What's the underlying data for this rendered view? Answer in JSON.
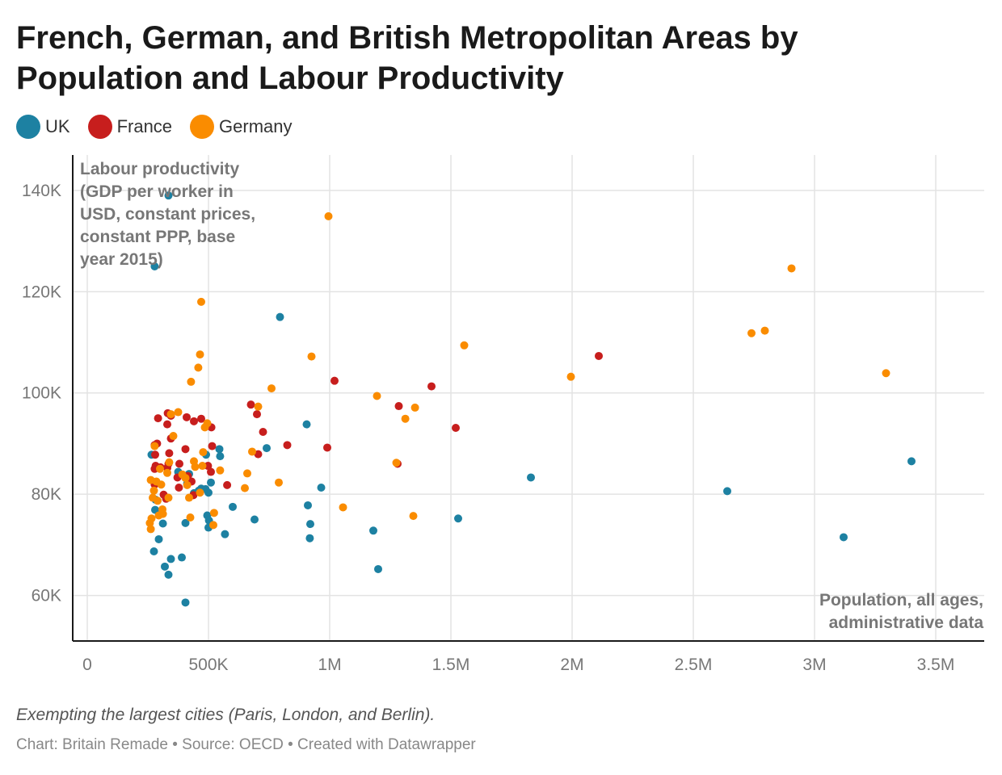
{
  "header": {
    "title": "French, German, and British Metropolitan Areas by Population and Labour Productivity"
  },
  "legend": [
    {
      "label": "UK",
      "color": "#1d81a2"
    },
    {
      "label": "France",
      "color": "#c71e1d"
    },
    {
      "label": "Germany",
      "color": "#fa8c00"
    }
  ],
  "footer": {
    "note": "Exempting the largest cities (Paris, London, and Berlin).",
    "credit": "Chart: Britain Remade • Source: OECD • Created with Datawrapper"
  },
  "chart_data": {
    "type": "scatter",
    "title": "French, German, and British Metropolitan Areas by Population and Labour Productivity",
    "xlabel": "Population, all ages, administrative data",
    "ylabel": "Labour productivity (GDP per worker in USD, constant prices, constant PPP, base year 2015)",
    "ylabel_lines": [
      "Labour productivity",
      "(GDP per worker in",
      "USD, constant prices,",
      "constant PPP, base",
      "year 2015)"
    ],
    "xlabel_lines": [
      "Population, all ages,",
      "administrative data"
    ],
    "xlim": [
      -60000,
      3700000
    ],
    "ylim": [
      51000,
      147000
    ],
    "xticks": [
      {
        "value": 0,
        "label": "0"
      },
      {
        "value": 500000,
        "label": "500K"
      },
      {
        "value": 1000000,
        "label": "1M"
      },
      {
        "value": 1500000,
        "label": "1.5M"
      },
      {
        "value": 2000000,
        "label": "2M"
      },
      {
        "value": 2500000,
        "label": "2.5M"
      },
      {
        "value": 3000000,
        "label": "3M"
      },
      {
        "value": 3500000,
        "label": "3.5M"
      }
    ],
    "yticks": [
      {
        "value": 60000,
        "label": "60K"
      },
      {
        "value": 80000,
        "label": "80K"
      },
      {
        "value": 100000,
        "label": "100K"
      },
      {
        "value": 120000,
        "label": "120K"
      },
      {
        "value": 140000,
        "label": "140K"
      }
    ],
    "grid": true,
    "legend_position": "top-left",
    "series": [
      {
        "name": "UK",
        "color": "#1d81a2",
        "points": [
          [
            335000,
            139000
          ],
          [
            278000,
            125000
          ],
          [
            795000,
            115000
          ],
          [
            905000,
            93800
          ],
          [
            3400000,
            86500
          ],
          [
            1830000,
            83300
          ],
          [
            2640000,
            80600
          ],
          [
            3120000,
            71500
          ],
          [
            1530000,
            75200
          ],
          [
            1180000,
            72800
          ],
          [
            1200000,
            65200
          ],
          [
            965000,
            81300
          ],
          [
            910000,
            77800
          ],
          [
            920000,
            74100
          ],
          [
            918000,
            71300
          ],
          [
            740000,
            89100
          ],
          [
            690000,
            75000
          ],
          [
            600000,
            77500
          ],
          [
            568000,
            72100
          ],
          [
            545000,
            88900
          ],
          [
            548000,
            87500
          ],
          [
            510000,
            82300
          ],
          [
            500000,
            80300
          ],
          [
            495000,
            75800
          ],
          [
            502000,
            74800
          ],
          [
            500000,
            73400
          ],
          [
            490000,
            87800
          ],
          [
            488000,
            81000
          ],
          [
            470000,
            81100
          ],
          [
            460000,
            80700
          ],
          [
            440000,
            80200
          ],
          [
            420000,
            84000
          ],
          [
            412000,
            82100
          ],
          [
            405000,
            74300
          ],
          [
            375000,
            84400
          ],
          [
            390000,
            67500
          ],
          [
            345000,
            67200
          ],
          [
            335000,
            64100
          ],
          [
            320000,
            65700
          ],
          [
            312000,
            74200
          ],
          [
            295000,
            71100
          ],
          [
            275000,
            68700
          ],
          [
            265000,
            87800
          ],
          [
            282000,
            78900
          ],
          [
            280000,
            76900
          ],
          [
            405000,
            58600
          ]
        ]
      },
      {
        "name": "France",
        "color": "#c71e1d",
        "points": [
          [
            2110000,
            107300
          ],
          [
            1420000,
            101300
          ],
          [
            1520000,
            93100
          ],
          [
            1285000,
            97400
          ],
          [
            1280000,
            86000
          ],
          [
            1020000,
            102400
          ],
          [
            990000,
            89200
          ],
          [
            825000,
            89700
          ],
          [
            725000,
            92300
          ],
          [
            700000,
            95800
          ],
          [
            675000,
            97700
          ],
          [
            705000,
            87900
          ],
          [
            577000,
            81800
          ],
          [
            515000,
            89500
          ],
          [
            512000,
            93200
          ],
          [
            498000,
            85600
          ],
          [
            510000,
            84400
          ],
          [
            470000,
            94900
          ],
          [
            440000,
            94400
          ],
          [
            430000,
            82500
          ],
          [
            438000,
            79800
          ],
          [
            410000,
            95200
          ],
          [
            405000,
            88900
          ],
          [
            415000,
            83600
          ],
          [
            380000,
            86000
          ],
          [
            378000,
            81300
          ],
          [
            372000,
            83300
          ],
          [
            345000,
            95500
          ],
          [
            332000,
            96000
          ],
          [
            330000,
            93800
          ],
          [
            345000,
            91000
          ],
          [
            338000,
            88100
          ],
          [
            335000,
            86000
          ],
          [
            330000,
            85200
          ],
          [
            325000,
            79100
          ],
          [
            315000,
            79900
          ],
          [
            302000,
            85300
          ],
          [
            292000,
            95000
          ],
          [
            288000,
            90000
          ],
          [
            278000,
            89700
          ],
          [
            280000,
            87800
          ],
          [
            278000,
            85000
          ],
          [
            278000,
            81900
          ],
          [
            282000,
            85600
          ]
        ]
      },
      {
        "name": "Germany",
        "color": "#fa8c00",
        "points": [
          [
            995000,
            134900
          ],
          [
            2905000,
            124600
          ],
          [
            2740000,
            111800
          ],
          [
            2795000,
            112300
          ],
          [
            3295000,
            103900
          ],
          [
            1995000,
            103200
          ],
          [
            1555000,
            109400
          ],
          [
            925000,
            107200
          ],
          [
            470000,
            118000
          ],
          [
            465000,
            107600
          ],
          [
            458000,
            105000
          ],
          [
            428000,
            102200
          ],
          [
            760000,
            100900
          ],
          [
            1195000,
            99400
          ],
          [
            1352000,
            97100
          ],
          [
            1312000,
            94900
          ],
          [
            705000,
            97300
          ],
          [
            680000,
            88400
          ],
          [
            660000,
            84100
          ],
          [
            650000,
            81200
          ],
          [
            790000,
            82300
          ],
          [
            1055000,
            77400
          ],
          [
            1345000,
            75700
          ],
          [
            1275000,
            86200
          ],
          [
            548000,
            84700
          ],
          [
            523000,
            76300
          ],
          [
            520000,
            73900
          ],
          [
            495000,
            94000
          ],
          [
            485000,
            93200
          ],
          [
            478000,
            88300
          ],
          [
            475000,
            85600
          ],
          [
            465000,
            80300
          ],
          [
            440000,
            86500
          ],
          [
            445000,
            85400
          ],
          [
            420000,
            79300
          ],
          [
            425000,
            75400
          ],
          [
            412000,
            81800
          ],
          [
            405000,
            83200
          ],
          [
            392000,
            83900
          ],
          [
            375000,
            96200
          ],
          [
            355000,
            91500
          ],
          [
            345000,
            95800
          ],
          [
            338000,
            86300
          ],
          [
            335000,
            79300
          ],
          [
            330000,
            84200
          ],
          [
            310000,
            77000
          ],
          [
            312000,
            76100
          ],
          [
            305000,
            81900
          ],
          [
            300000,
            85000
          ],
          [
            295000,
            75800
          ],
          [
            290000,
            78700
          ],
          [
            285000,
            82500
          ],
          [
            278000,
            89500
          ],
          [
            275000,
            80700
          ],
          [
            270000,
            79300
          ],
          [
            262000,
            82800
          ],
          [
            265000,
            75200
          ],
          [
            262000,
            73100
          ],
          [
            258000,
            74300
          ]
        ]
      }
    ]
  }
}
